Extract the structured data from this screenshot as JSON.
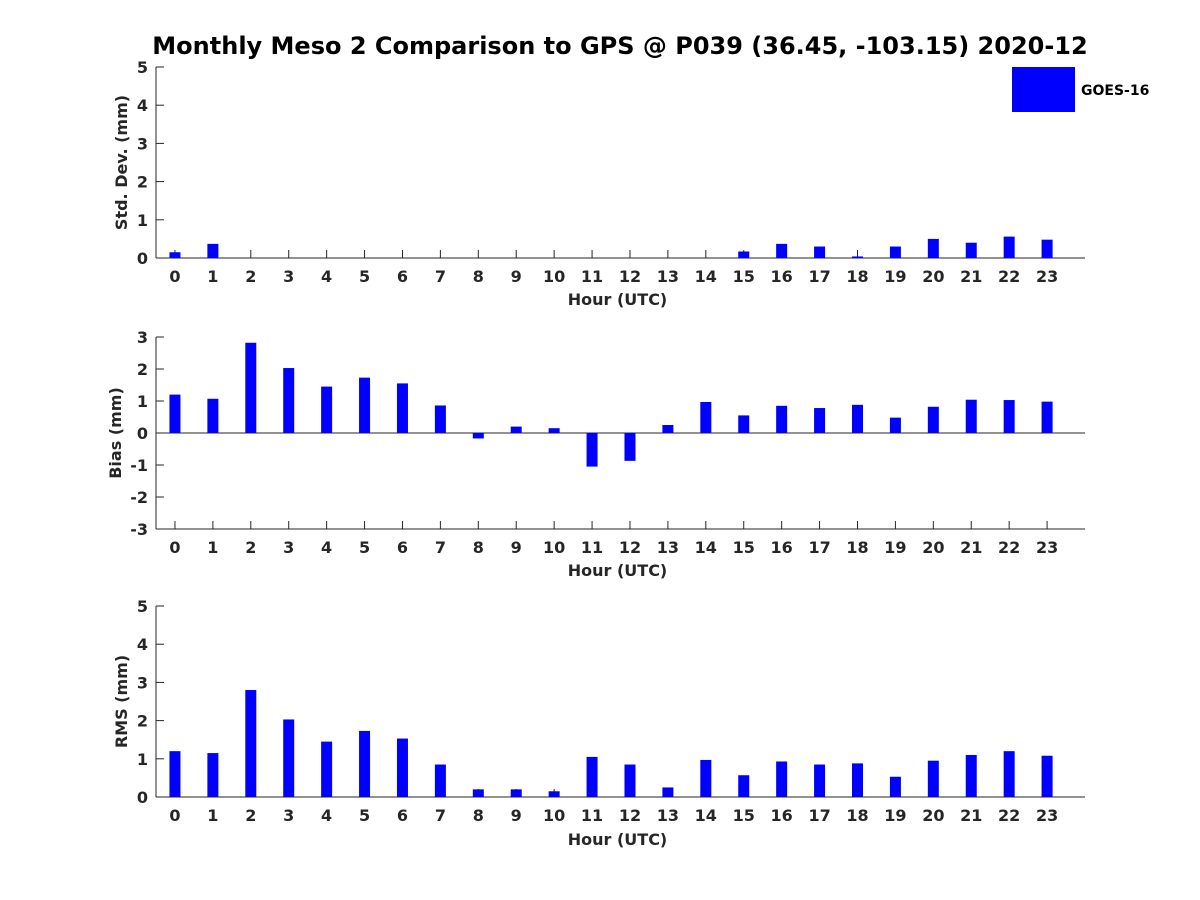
{
  "title": "Monthly Meso 2 Comparison to GPS @ P039 (36.45, -103.15) 2020-12",
  "bar_color": "#0000ff",
  "chart_data": [
    {
      "type": "bar",
      "xlabel": "Hour (UTC)",
      "ylabel": "Std. Dev. (mm)",
      "categories": [
        "0",
        "1",
        "2",
        "3",
        "4",
        "5",
        "6",
        "7",
        "8",
        "9",
        "10",
        "11",
        "12",
        "13",
        "14",
        "15",
        "16",
        "17",
        "18",
        "19",
        "20",
        "21",
        "22",
        "23"
      ],
      "ylim": [
        0,
        5
      ],
      "yticks": [
        "0",
        "1",
        "2",
        "3",
        "4",
        "5"
      ],
      "legend": {
        "label": "GOES-16",
        "placement": "top-right"
      },
      "series": [
        {
          "name": "GOES-16",
          "values": [
            0.15,
            0.37,
            0,
            0,
            0,
            0,
            0,
            0,
            0,
            0,
            0,
            0,
            0,
            0,
            0,
            0.17,
            0.37,
            0.3,
            0.04,
            0.3,
            0.5,
            0.4,
            0.56,
            0.48
          ]
        }
      ]
    },
    {
      "type": "bar",
      "xlabel": "Hour (UTC)",
      "ylabel": "Bias (mm)",
      "categories": [
        "0",
        "1",
        "2",
        "3",
        "4",
        "5",
        "6",
        "7",
        "8",
        "9",
        "10",
        "11",
        "12",
        "13",
        "14",
        "15",
        "16",
        "17",
        "18",
        "19",
        "20",
        "21",
        "22",
        "23"
      ],
      "ylim": [
        -3,
        3
      ],
      "yticks": [
        "-3",
        "-2",
        "-1",
        "0",
        "1",
        "2",
        "3"
      ],
      "series": [
        {
          "name": "GOES-16",
          "values": [
            1.2,
            1.07,
            2.82,
            2.03,
            1.45,
            1.73,
            1.55,
            0.86,
            -0.17,
            0.2,
            0.15,
            -1.05,
            -0.87,
            0.25,
            0.97,
            0.55,
            0.85,
            0.78,
            0.88,
            0.48,
            0.82,
            1.04,
            1.03,
            0.98
          ]
        }
      ]
    },
    {
      "type": "bar",
      "xlabel": "Hour (UTC)",
      "ylabel": "RMS (mm)",
      "categories": [
        "0",
        "1",
        "2",
        "3",
        "4",
        "5",
        "6",
        "7",
        "8",
        "9",
        "10",
        "11",
        "12",
        "13",
        "14",
        "15",
        "16",
        "17",
        "18",
        "19",
        "20",
        "21",
        "22",
        "23"
      ],
      "ylim": [
        0,
        5
      ],
      "yticks": [
        "0",
        "1",
        "2",
        "3",
        "4",
        "5"
      ],
      "series": [
        {
          "name": "GOES-16",
          "values": [
            1.2,
            1.15,
            2.8,
            2.03,
            1.45,
            1.73,
            1.53,
            0.85,
            0.2,
            0.2,
            0.15,
            1.05,
            0.85,
            0.25,
            0.97,
            0.57,
            0.93,
            0.85,
            0.88,
            0.53,
            0.95,
            1.1,
            1.2,
            1.08
          ]
        }
      ]
    }
  ]
}
